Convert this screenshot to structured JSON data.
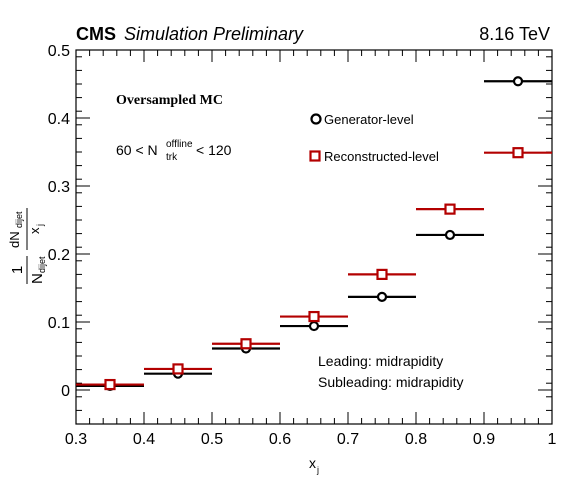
{
  "header": {
    "cms": "CMS",
    "status": "Simulation Preliminary",
    "energy": "8.16 TeV"
  },
  "annotations": {
    "sample": "Oversampled MC",
    "mult_prefix": "60 < N",
    "mult_sup": "offline",
    "mult_sub": "trk",
    "mult_suffix": "< 120",
    "region_line1": "Leading: midrapidity",
    "region_line2": "Subleading: midrapidity"
  },
  "axes": {
    "xlabel_main": "x",
    "xlabel_sub": "j",
    "ylabel": {
      "one": "1",
      "N": "N",
      "N_sub": "dijet",
      "dN": "dN",
      "dN_sub": "dijet",
      "dx": "x",
      "dx_sub": "j"
    }
  },
  "chart_data": {
    "type": "scatter",
    "xlim": [
      0.3,
      1.0
    ],
    "ylim": [
      -0.05,
      0.5
    ],
    "x_ticks": [
      "0.3",
      "0.4",
      "0.5",
      "0.6",
      "0.7",
      "0.8",
      "0.9",
      "1"
    ],
    "y_ticks": [
      "0",
      "0.1",
      "0.2",
      "0.3",
      "0.4",
      "0.5"
    ],
    "x_tick_values": [
      0.3,
      0.4,
      0.5,
      0.6,
      0.7,
      0.8,
      0.9,
      1.0
    ],
    "y_tick_values": [
      0,
      0.1,
      0.2,
      0.3,
      0.4,
      0.5
    ],
    "bin_edges": [
      0.3,
      0.4,
      0.5,
      0.6,
      0.7,
      0.8,
      0.9,
      1.0
    ],
    "x": [
      0.35,
      0.45,
      0.55,
      0.65,
      0.75,
      0.85,
      0.95
    ],
    "series": [
      {
        "name": "Generator-level",
        "color": "#000000",
        "marker": "open-circle",
        "values": [
          0.006,
          0.024,
          0.061,
          0.094,
          0.137,
          0.228,
          0.454
        ]
      },
      {
        "name": "Reconstructed-level",
        "color": "#b30000",
        "marker": "open-square",
        "values": [
          0.008,
          0.031,
          0.068,
          0.108,
          0.17,
          0.266,
          0.349
        ]
      }
    ],
    "legend_position": "top-center",
    "grid": false
  }
}
